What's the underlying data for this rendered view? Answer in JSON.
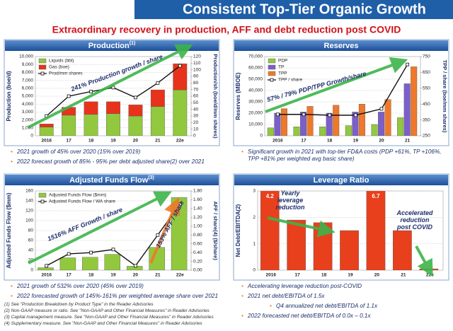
{
  "header": {
    "title": "Consistent Top-Tier Organic Growth",
    "subtitle": "Extraordinary recovery in production, AFF and debt reduction post COVID"
  },
  "chart_data": [
    {
      "type": "bar",
      "title": "Production",
      "title_note": "(1)",
      "stacked": true,
      "categories": [
        "2016",
        "17",
        "18",
        "19",
        "20",
        "21",
        "22e"
      ],
      "series": [
        {
          "name": "Liquids (bbl)",
          "color": "#92c83e",
          "values": [
            1100,
            2600,
            2700,
            2800,
            2500,
            3700,
            5800
          ]
        },
        {
          "name": "Gas (boe)",
          "color": "#e8331c",
          "values": [
            400,
            1000,
            1600,
            1500,
            1400,
            2100,
            3300
          ]
        },
        {
          "name": "Prod/mm shares",
          "color": "#111111",
          "kind": "line",
          "axis": "y2",
          "values": [
            30,
            60,
            67,
            73,
            58,
            80,
            106
          ]
        }
      ],
      "ylim": [
        0,
        10000
      ],
      "yticks": [
        0,
        {
          "value": 1000,
          "label": "1,000"
        },
        {
          "value": 2000,
          "label": "2,000"
        },
        {
          "value": 3000,
          "label": "3,000"
        },
        {
          "value": 4000,
          "label": "4,000"
        },
        {
          "value": 5000,
          "label": "5,000"
        },
        {
          "value": 6000,
          "label": "6,000"
        },
        {
          "value": 7000,
          "label": "7,000"
        },
        {
          "value": 8000,
          "label": "8,000"
        },
        {
          "value": 9000,
          "label": "9,000"
        },
        {
          "value": 10000,
          "label": "10,000"
        }
      ],
      "y2lim": [
        0,
        120
      ],
      "y2ticks": [
        0,
        10,
        20,
        30,
        40,
        50,
        60,
        70,
        80,
        90,
        100,
        110,
        120
      ],
      "y_label": "Production (boe/d)",
      "y2_label": "Production/sh (boe/d/mm shares)",
      "grid": true,
      "legend": "upper left",
      "annotations": [
        "241% Production growth / share"
      ]
    },
    {
      "type": "bar",
      "title": "Reserves",
      "categories": [
        "2016",
        "17",
        "18",
        "19",
        "20",
        "21"
      ],
      "series": [
        {
          "name": "PDP",
          "color": "#92c83e",
          "values": [
            7000,
            8000,
            8000,
            9000,
            10000,
            16000
          ]
        },
        {
          "name": "TP",
          "color": "#7b5fc9",
          "values": [
            20000,
            21000,
            20000,
            21000,
            21000,
            46000
          ]
        },
        {
          "name": "TPP",
          "color": "#f0782a",
          "values": [
            24000,
            26000,
            27000,
            28000,
            32000,
            61000
          ]
        },
        {
          "name": "TPP / share",
          "color": "#111111",
          "kind": "line",
          "axis": "y2",
          "values": [
            385,
            385,
            380,
            380,
            420,
            700
          ]
        }
      ],
      "ylim": [
        0,
        70000
      ],
      "yticks": [
        0,
        {
          "value": 10000,
          "label": "10,000"
        },
        {
          "value": 20000,
          "label": "20,000"
        },
        {
          "value": 30000,
          "label": "30,000"
        },
        {
          "value": 40000,
          "label": "40,000"
        },
        {
          "value": 50000,
          "label": "50,000"
        },
        {
          "value": 60000,
          "label": "60,000"
        },
        {
          "value": 70000,
          "label": "70,000"
        }
      ],
      "y2lim": [
        250,
        750
      ],
      "y2ticks": [
        250,
        350,
        450,
        550,
        650,
        750
      ],
      "y_label": "Reserves (MBOE)",
      "y2_label": "TPP / share (boe/mm shares)",
      "grid": true,
      "legend": "upper left",
      "annotations": [
        "57% / 79% PDP/TPP Growth/share"
      ]
    },
    {
      "type": "bar",
      "title": "Adjusted Funds Flow",
      "title_note": "(3)",
      "categories": [
        "2016",
        "17",
        "18",
        "19",
        "20",
        "21",
        "22e"
      ],
      "series": [
        {
          "name": "Adjusted Funds Flow ($mm)",
          "color": "#92c83e",
          "values": [
            5,
            25,
            26,
            32,
            8,
            46,
            147
          ]
        },
        {
          "name": "Adjusted Funds Flow / WA share",
          "color": "#111111",
          "kind": "line",
          "axis": "y2",
          "values": [
            0.1,
            0.37,
            0.4,
            0.47,
            0.1,
            0.8,
            1.5
          ]
        }
      ],
      "ylim": [
        0,
        160
      ],
      "yticks": [
        0,
        20,
        40,
        60,
        80,
        100,
        120,
        140,
        160
      ],
      "y2lim": [
        0,
        1.8
      ],
      "y2ticks": [
        {
          "value": 0,
          "label": "0.00"
        },
        {
          "value": 0.2,
          "label": "0.20"
        },
        {
          "value": 0.4,
          "label": "0.40"
        },
        {
          "value": 0.6,
          "label": "0.60"
        },
        {
          "value": 0.8,
          "label": "0.80"
        },
        {
          "value": 1,
          "label": "1.00"
        },
        {
          "value": 1.2,
          "label": "1.20"
        },
        {
          "value": 1.4,
          "label": "1.40"
        },
        {
          "value": 1.6,
          "label": "1.60"
        },
        {
          "value": 1.8,
          "label": "1.80"
        }
      ],
      "y_label": "Adjusted Funds Flow ($mm)",
      "y2_label": "AFF / share(4) ($/share)",
      "grid": true,
      "legend": "upper left",
      "annotations": [
        "1516% AFF Growth / share",
        "153% AFF / share"
      ]
    },
    {
      "type": "bar",
      "title": "Leverage Ratio",
      "categories": [
        "2016",
        "17",
        "18",
        "19",
        "20",
        "21",
        "22e"
      ],
      "series": [
        {
          "name": "Net Debt/EBITDA",
          "color": "#e8401c",
          "values": [
            4.2,
            1.9,
            1.8,
            1.5,
            6.7,
            1.5,
            0.05
          ],
          "value_labels": [
            "4.2",
            null,
            null,
            null,
            "6.7",
            null,
            null
          ]
        }
      ],
      "ylim": [
        0,
        3
      ],
      "yticks": [
        0,
        1,
        2,
        3
      ],
      "y_label": "Net Debt/EBITDA(2)",
      "grid": true,
      "annotations": [
        "Yearly leverage reduction",
        "Accelerated reduction post COVID"
      ]
    }
  ],
  "bullets": [
    [
      "2021 growth of 45% over 2020 (15% over 2019)",
      "2022 forecast growth of 85% - 95% per debt adjusted share(2) over 2021"
    ],
    [
      "Significant growth in 2021 with top-tier FD&A costs (PDP +61%, TP +106%, TPP +81% per weighted avg basic share)"
    ],
    [
      "2021 growth of 532% over 2020 (45% over 2019)",
      "2022 forecasted growth of 145%-161% per weighted average share over 2021"
    ],
    [
      "Accelerating leverage reduction post-COVID",
      "2021 net debt/EBITDA of 1.5x",
      "Q4 annualized net debt/EBITDA of 1.1x",
      "2022 forecasted net debt/EBITDA of 0.0x – 0.1x"
    ]
  ],
  "footnotes": [
    "(1)   See \"Production Breakdown by Product Type\" in the Reader Advisories",
    "(2)   Non-GAAP measure or ratio. See \"Non-GAAP and Other Financial Measures\" in Reader Advisories",
    "(3)   Capital management measure. See \"Non-GAAP and Other Financial Measures\" in Reader Advisories",
    "(4)   Supplementary measure. See \"Non-GAAP and Other Financial Measures\" in Reader Advisories"
  ]
}
